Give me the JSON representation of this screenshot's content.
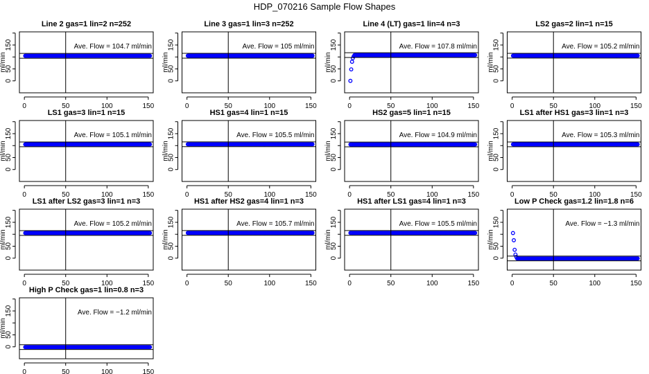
{
  "chart_data": {
    "type": "scatter",
    "title": "HDP_070216  Sample Flow Shapes",
    "ylabel": "ml/min",
    "xlim": [
      -6,
      156
    ],
    "ylim": [
      -50,
      205
    ],
    "x_ticks": [
      "0",
      "50",
      "100",
      "150"
    ],
    "y_ticks": [
      "0",
      "50",
      "150"
    ],
    "x_range_points": [
      1,
      152
    ],
    "marker_color": "#0000ff",
    "vertical_line_x": 50,
    "band_half_width": 10,
    "panels": [
      {
        "title": "Line 2 gas=1 lin=2 n=252",
        "ave_text": "Ave. Flow =  104.7  ml/min",
        "steady": 104.7,
        "initial": []
      },
      {
        "title": "Line 3 gas=1 lin=3 n=252",
        "ave_text": "Ave. Flow =  105  ml/min",
        "steady": 105,
        "initial": []
      },
      {
        "title": "Line 4 (LT) gas=1 lin=4 n=3",
        "ave_text": "Ave. Flow =  107.8  ml/min",
        "steady": 107.8,
        "initial": [
          0,
          48,
          80,
          95,
          103
        ]
      },
      {
        "title": "LS2 gas=2 lin=1 n=15",
        "ave_text": "Ave. Flow =  105.2  ml/min",
        "steady": 105.2,
        "initial": []
      },
      {
        "title": "LS1 gas=3 lin=1 n=15",
        "ave_text": "Ave. Flow =  105.1  ml/min",
        "steady": 105.1,
        "initial": []
      },
      {
        "title": "HS1 gas=4 lin=1 n=15",
        "ave_text": "Ave. Flow =  105.5  ml/min",
        "steady": 105.5,
        "initial": []
      },
      {
        "title": "HS2 gas=5 lin=1 n=15",
        "ave_text": "Ave. Flow =  104.9  ml/min",
        "steady": 104.9,
        "initial": []
      },
      {
        "title": "LS1 after HS1 gas=3 lin=1 n=3",
        "ave_text": "Ave. Flow =  105.3  ml/min",
        "steady": 105.3,
        "initial": []
      },
      {
        "title": "LS1 after LS2 gas=3 lin=1 n=3",
        "ave_text": "Ave. Flow =  105.2  ml/min",
        "steady": 105.2,
        "initial": []
      },
      {
        "title": "HS1 after HS2 gas=4 lin=1 n=3",
        "ave_text": "Ave. Flow =  105.7  ml/min",
        "steady": 105.7,
        "initial": []
      },
      {
        "title": "HS1 after LS1 gas=4 lin=1 n=3",
        "ave_text": "Ave. Flow =  105.5  ml/min",
        "steady": 105.5,
        "initial": []
      },
      {
        "title": "Low P Check gas=1.2 lin=1.8 n=6",
        "ave_text": "Ave. Flow =  −1.3  ml/min",
        "steady": -1.3,
        "initial": [
          105,
          75,
          35,
          15,
          5
        ]
      },
      {
        "title": "High P Check gas=1 lin=0.8 n=3",
        "ave_text": "Ave. Flow =  −1.2  ml/min",
        "steady": -1.2,
        "initial": []
      }
    ]
  }
}
